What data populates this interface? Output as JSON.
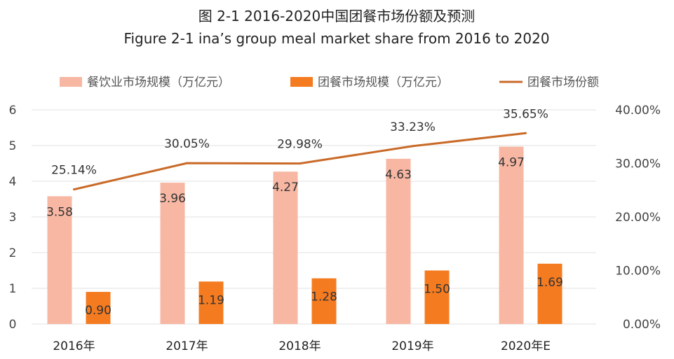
{
  "chart_data": {
    "type": "bar",
    "title": "图 2-1 2016-2020中国团餐市场份额及预测",
    "subtitle": "Figure 2-1 ina’s group meal market share from 2016 to 2020",
    "categories": [
      "2016年",
      "2017年",
      "2018年",
      "2019年",
      "2020年E"
    ],
    "series": [
      {
        "name": "餐饮业市场规模（万亿元）",
        "type": "bar",
        "axis": "left",
        "color": "#f7b7a3",
        "values": [
          3.58,
          3.96,
          4.27,
          4.63,
          4.97
        ],
        "labels": [
          "3.58",
          "3.96",
          "4.27",
          "4.63",
          "4.97"
        ]
      },
      {
        "name": "团餐市场规模（万亿元）",
        "type": "bar",
        "axis": "left",
        "color": "#f47b20",
        "values": [
          0.9,
          1.19,
          1.28,
          1.5,
          1.69
        ],
        "labels": [
          "0.90",
          "1.19",
          "1.28",
          "1.50",
          "1.69"
        ]
      },
      {
        "name": "团餐市场份额",
        "type": "line",
        "axis": "right",
        "color": "#c96a28",
        "values": [
          25.14,
          30.05,
          29.98,
          33.23,
          35.65
        ],
        "labels": [
          "25.14%",
          "30.05%",
          "29.98%",
          "33.23%",
          "35.65%"
        ]
      }
    ],
    "y_left": {
      "min": 0,
      "max": 6,
      "ticks": [
        "0",
        "1",
        "2",
        "3",
        "4",
        "5",
        "6"
      ]
    },
    "y_right": {
      "min": 0,
      "max": 40,
      "ticks": [
        "0.00%",
        "10.00%",
        "20.00%",
        "30.00%",
        "40.00%"
      ]
    },
    "grid": true,
    "legend_position": "top"
  }
}
